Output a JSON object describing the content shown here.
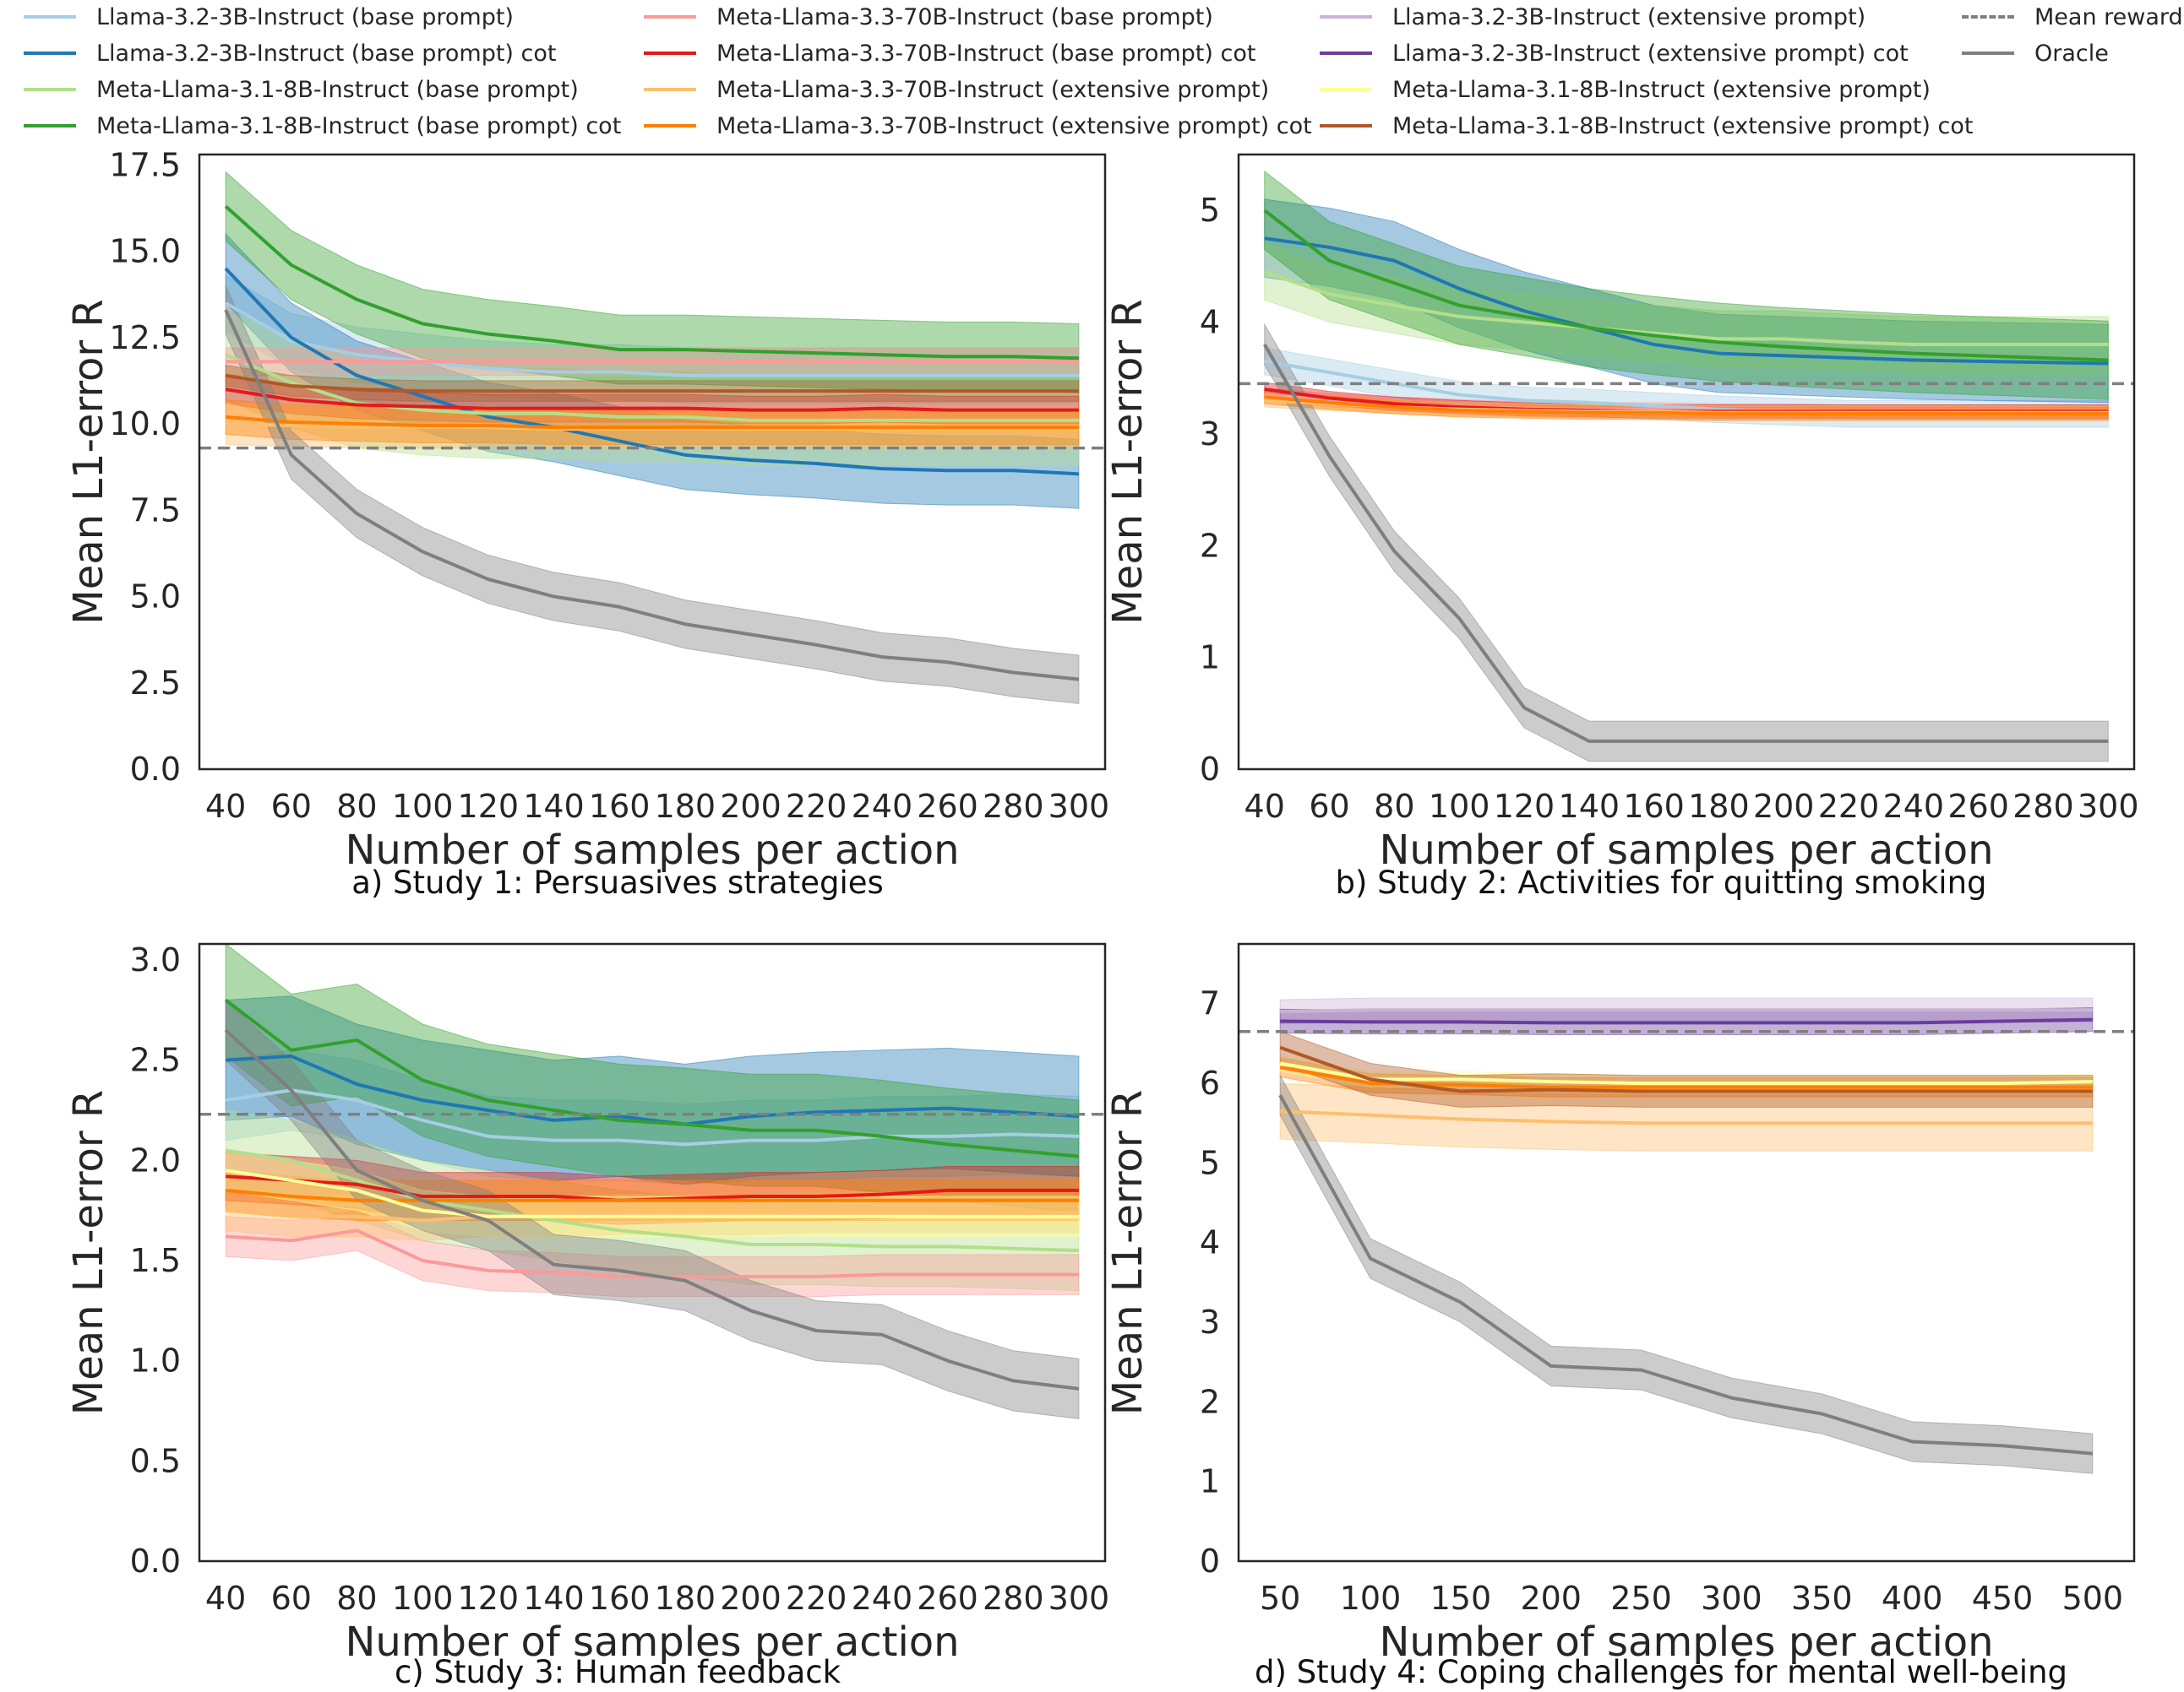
{
  "legend": {
    "items": [
      {
        "label": "Llama-3.2-3B-Instruct (base prompt)",
        "color": "#a6cee3",
        "style": "solid"
      },
      {
        "label": "Llama-3.2-3B-Instruct (base prompt) cot",
        "color": "#1f78b4",
        "style": "solid"
      },
      {
        "label": "Meta-Llama-3.1-8B-Instruct (base prompt)",
        "color": "#b2df8a",
        "style": "solid"
      },
      {
        "label": "Meta-Llama-3.1-8B-Instruct (base prompt) cot",
        "color": "#33a02c",
        "style": "solid"
      },
      {
        "label": "Meta-Llama-3.3-70B-Instruct (base prompt)",
        "color": "#fb9a99",
        "style": "solid"
      },
      {
        "label": "Meta-Llama-3.3-70B-Instruct (base prompt) cot",
        "color": "#e31a1c",
        "style": "solid"
      },
      {
        "label": "Meta-Llama-3.3-70B-Instruct (extensive prompt)",
        "color": "#fdbf6f",
        "style": "solid"
      },
      {
        "label": "Meta-Llama-3.3-70B-Instruct (extensive prompt) cot",
        "color": "#ff7f00",
        "style": "solid"
      },
      {
        "label": "Llama-3.2-3B-Instruct (extensive prompt)",
        "color": "#cab2d6",
        "style": "solid"
      },
      {
        "label": "Llama-3.2-3B-Instruct (extensive prompt) cot",
        "color": "#6a3d9a",
        "style": "solid"
      },
      {
        "label": "Meta-Llama-3.1-8B-Instruct (extensive prompt)",
        "color": "#ffff99",
        "style": "solid"
      },
      {
        "label": "Meta-Llama-3.1-8B-Instruct (extensive prompt) cot",
        "color": "#b15928",
        "style": "solid"
      },
      {
        "label": "Mean reward",
        "color": "#7f7f7f",
        "style": "dashed"
      },
      {
        "label": "Oracle",
        "color": "#7f7f7f",
        "style": "solid"
      }
    ]
  },
  "chart_data": [
    {
      "type": "line",
      "caption": "a) Study 1: Persuasives strategies",
      "xlabel": "Number of samples per action",
      "ylabel": "Mean L1-error R",
      "x": [
        40,
        60,
        80,
        100,
        120,
        140,
        160,
        180,
        200,
        220,
        240,
        260,
        280,
        300
      ],
      "xticks": [
        40,
        60,
        80,
        100,
        120,
        140,
        160,
        180,
        200,
        220,
        240,
        260,
        280,
        300
      ],
      "xlim": [
        32,
        308
      ],
      "ylim": [
        0,
        17.8
      ],
      "yticks": [
        0.0,
        2.5,
        5.0,
        7.5,
        10.0,
        12.5,
        15.0,
        17.5
      ],
      "ytick_decimals": 1,
      "mean_reward": 9.3,
      "series": [
        {
          "name": "Llama-3.2-3B-Instruct (base prompt)",
          "color": "#a6cee3",
          "values": [
            13.5,
            12.4,
            12.0,
            11.8,
            11.6,
            11.5,
            11.5,
            11.4,
            11.4,
            11.4,
            11.4,
            11.4,
            11.4,
            11.4
          ],
          "band": 0.8
        },
        {
          "name": "Llama-3.2-3B-Instruct (base prompt) cot",
          "color": "#1f78b4",
          "values": [
            14.5,
            12.5,
            11.4,
            10.8,
            10.2,
            9.9,
            9.5,
            9.1,
            8.95,
            8.85,
            8.7,
            8.65,
            8.65,
            8.55
          ],
          "band": 1.0
        },
        {
          "name": "Meta-Llama-3.1-8B-Instruct (base prompt)",
          "color": "#b2df8a",
          "values": [
            12.0,
            11.2,
            10.6,
            10.4,
            10.3,
            10.3,
            10.2,
            10.2,
            10.1,
            10.1,
            10.1,
            10.1,
            10.1,
            10.1
          ],
          "band": 1.3
        },
        {
          "name": "Meta-Llama-3.1-8B-Instruct (base prompt) cot",
          "color": "#33a02c",
          "values": [
            16.3,
            14.6,
            13.6,
            12.9,
            12.6,
            12.4,
            12.15,
            12.15,
            12.1,
            12.05,
            12.0,
            11.95,
            11.95,
            11.9
          ],
          "band": 1.0
        },
        {
          "name": "Meta-Llama-3.3-70B-Instruct (base prompt)",
          "color": "#fb9a99",
          "values": [
            11.8,
            11.8,
            11.8,
            11.8,
            11.8,
            11.8,
            11.8,
            11.8,
            11.8,
            11.8,
            11.8,
            11.8,
            11.8,
            11.8
          ],
          "band": 0.4
        },
        {
          "name": "Meta-Llama-3.3-70B-Instruct (base prompt) cot",
          "color": "#e31a1c",
          "values": [
            11.0,
            10.7,
            10.55,
            10.5,
            10.45,
            10.45,
            10.45,
            10.45,
            10.4,
            10.4,
            10.45,
            10.4,
            10.4,
            10.4
          ],
          "band": 0.4
        },
        {
          "name": "Meta-Llama-3.3-70B-Instruct (extensive prompt)",
          "color": "#fdbf6f",
          "values": [
            10.0,
            9.95,
            9.9,
            9.9,
            9.9,
            9.85,
            9.85,
            9.85,
            9.85,
            9.85,
            9.85,
            9.85,
            9.85,
            9.85
          ],
          "band": 0.6
        },
        {
          "name": "Meta-Llama-3.3-70B-Instruct (extensive prompt) cot",
          "color": "#ff7f00",
          "values": [
            10.2,
            10.05,
            10.0,
            9.95,
            9.95,
            9.9,
            9.9,
            9.9,
            9.9,
            9.9,
            9.9,
            9.9,
            9.9,
            9.9
          ],
          "band": 0.5
        },
        {
          "name": "Meta-Llama-3.1-8B-Instruct (extensive prompt) cot",
          "color": "#b15928",
          "values": [
            11.4,
            11.1,
            11.0,
            10.95,
            10.95,
            10.95,
            10.95,
            10.95,
            10.95,
            10.95,
            10.95,
            10.95,
            10.95,
            10.95
          ],
          "band": 0.3
        },
        {
          "name": "Oracle",
          "color": "#7f7f7f",
          "values": [
            13.3,
            9.1,
            7.4,
            6.3,
            5.5,
            5.0,
            4.7,
            4.2,
            3.9,
            3.6,
            3.25,
            3.1,
            2.8,
            2.6
          ],
          "band": 0.7
        }
      ]
    },
    {
      "type": "line",
      "caption": "b) Study 2: Activities for quitting smoking",
      "xlabel": "Number of samples per action",
      "ylabel": "Mean L1-error R",
      "x": [
        40,
        60,
        80,
        100,
        120,
        140,
        160,
        180,
        200,
        220,
        240,
        260,
        280,
        300
      ],
      "xticks": [
        40,
        60,
        80,
        100,
        120,
        140,
        160,
        180,
        200,
        220,
        240,
        260,
        280,
        300
      ],
      "xlim": [
        32,
        308
      ],
      "ylim": [
        0,
        5.5
      ],
      "yticks": [
        0,
        1,
        2,
        3,
        4,
        5
      ],
      "ytick_decimals": 0,
      "mean_reward": 3.45,
      "series": [
        {
          "name": "Llama-3.2-3B-Instruct (base prompt)",
          "color": "#a6cee3",
          "values": [
            3.65,
            3.55,
            3.45,
            3.35,
            3.3,
            3.28,
            3.25,
            3.22,
            3.2,
            3.18,
            3.18,
            3.18,
            3.18,
            3.18
          ],
          "band": 0.12
        },
        {
          "name": "Llama-3.2-3B-Instruct (base prompt) cot",
          "color": "#1f78b4",
          "values": [
            4.75,
            4.67,
            4.55,
            4.3,
            4.1,
            3.95,
            3.8,
            3.72,
            3.7,
            3.68,
            3.66,
            3.65,
            3.64,
            3.63
          ],
          "band": 0.35
        },
        {
          "name": "Meta-Llama-3.1-8B-Instruct (base prompt)",
          "color": "#b2df8a",
          "values": [
            4.45,
            4.25,
            4.15,
            4.05,
            4.0,
            3.95,
            3.9,
            3.85,
            3.85,
            3.82,
            3.8,
            3.8,
            3.8,
            3.8
          ],
          "band": 0.25
        },
        {
          "name": "Meta-Llama-3.1-8B-Instruct (base prompt) cot",
          "color": "#33a02c",
          "values": [
            5.0,
            4.55,
            4.35,
            4.15,
            4.05,
            3.95,
            3.88,
            3.82,
            3.78,
            3.75,
            3.72,
            3.7,
            3.68,
            3.66
          ],
          "band": 0.35
        },
        {
          "name": "Meta-Llama-3.3-70B-Instruct (base prompt)",
          "color": "#fb9a99",
          "values": [
            3.35,
            3.3,
            3.27,
            3.25,
            3.23,
            3.22,
            3.22,
            3.21,
            3.21,
            3.2,
            3.2,
            3.2,
            3.2,
            3.2
          ],
          "band": 0.06
        },
        {
          "name": "Meta-Llama-3.3-70B-Instruct (base prompt) cot",
          "color": "#e31a1c",
          "values": [
            3.4,
            3.32,
            3.27,
            3.24,
            3.22,
            3.21,
            3.2,
            3.2,
            3.2,
            3.2,
            3.2,
            3.2,
            3.2,
            3.2
          ],
          "band": 0.06
        },
        {
          "name": "Meta-Llama-3.3-70B-Instruct (extensive prompt)",
          "color": "#fdbf6f",
          "values": [
            3.3,
            3.27,
            3.24,
            3.22,
            3.21,
            3.2,
            3.2,
            3.19,
            3.19,
            3.19,
            3.19,
            3.19,
            3.19,
            3.19
          ],
          "band": 0.06
        },
        {
          "name": "Meta-Llama-3.3-70B-Instruct (extensive prompt) cot",
          "color": "#ff7f00",
          "values": [
            3.33,
            3.28,
            3.24,
            3.21,
            3.2,
            3.19,
            3.19,
            3.18,
            3.18,
            3.18,
            3.18,
            3.18,
            3.18,
            3.18
          ],
          "band": 0.06
        },
        {
          "name": "Oracle",
          "color": "#7f7f7f",
          "values": [
            3.8,
            2.8,
            1.95,
            1.35,
            0.55,
            0.25,
            0.25,
            0.25,
            0.25,
            0.25,
            0.25,
            0.25,
            0.25,
            0.25
          ],
          "band": 0.18
        }
      ]
    },
    {
      "type": "line",
      "caption": "c) Study 3: Human feedback",
      "xlabel": "Number of samples per action",
      "ylabel": "Mean L1-error R",
      "x": [
        40,
        60,
        80,
        100,
        120,
        140,
        160,
        180,
        200,
        220,
        240,
        260,
        280,
        300
      ],
      "xticks": [
        40,
        60,
        80,
        100,
        120,
        140,
        160,
        180,
        200,
        220,
        240,
        260,
        280,
        300
      ],
      "xlim": [
        32,
        308
      ],
      "ylim": [
        0,
        3.08
      ],
      "yticks": [
        0.0,
        0.5,
        1.0,
        1.5,
        2.0,
        2.5,
        3.0
      ],
      "ytick_decimals": 1,
      "mean_reward": 2.23,
      "series": [
        {
          "name": "Llama-3.2-3B-Instruct (base prompt)",
          "color": "#a6cee3",
          "values": [
            2.3,
            2.35,
            2.3,
            2.2,
            2.12,
            2.1,
            2.1,
            2.08,
            2.1,
            2.1,
            2.12,
            2.12,
            2.13,
            2.12
          ],
          "band": 0.2
        },
        {
          "name": "Llama-3.2-3B-Instruct (base prompt) cot",
          "color": "#1f78b4",
          "values": [
            2.5,
            2.52,
            2.38,
            2.3,
            2.25,
            2.2,
            2.22,
            2.18,
            2.22,
            2.24,
            2.25,
            2.26,
            2.24,
            2.22
          ],
          "band": 0.3
        },
        {
          "name": "Meta-Llama-3.1-8B-Instruct (base prompt)",
          "color": "#b2df8a",
          "values": [
            2.05,
            2.0,
            1.9,
            1.8,
            1.75,
            1.7,
            1.65,
            1.62,
            1.58,
            1.58,
            1.57,
            1.57,
            1.56,
            1.55
          ],
          "band": 0.2
        },
        {
          "name": "Meta-Llama-3.1-8B-Instruct (base prompt) cot",
          "color": "#33a02c",
          "values": [
            2.8,
            2.55,
            2.6,
            2.4,
            2.3,
            2.25,
            2.2,
            2.18,
            2.15,
            2.15,
            2.12,
            2.08,
            2.05,
            2.02
          ],
          "band": 0.28
        },
        {
          "name": "Meta-Llama-3.3-70B-Instruct (base prompt)",
          "color": "#fb9a99",
          "values": [
            1.62,
            1.6,
            1.65,
            1.5,
            1.45,
            1.44,
            1.42,
            1.42,
            1.42,
            1.42,
            1.43,
            1.43,
            1.43,
            1.43
          ],
          "band": 0.1
        },
        {
          "name": "Meta-Llama-3.3-70B-Instruct (base prompt) cot",
          "color": "#e31a1c",
          "values": [
            1.92,
            1.9,
            1.88,
            1.82,
            1.82,
            1.82,
            1.8,
            1.81,
            1.82,
            1.82,
            1.83,
            1.85,
            1.85,
            1.85
          ],
          "band": 0.12
        },
        {
          "name": "Meta-Llama-3.3-70B-Instruct (extensive prompt)",
          "color": "#fdbf6f",
          "values": [
            1.75,
            1.72,
            1.72,
            1.7,
            1.72,
            1.72,
            1.73,
            1.73,
            1.73,
            1.74,
            1.74,
            1.74,
            1.74,
            1.74
          ],
          "band": 0.1
        },
        {
          "name": "Meta-Llama-3.3-70B-Instruct (extensive prompt) cot",
          "color": "#ff7f00",
          "values": [
            1.85,
            1.82,
            1.8,
            1.8,
            1.8,
            1.8,
            1.8,
            1.8,
            1.8,
            1.8,
            1.8,
            1.8,
            1.8,
            1.8
          ],
          "band": 0.1
        },
        {
          "name": "Meta-Llama-3.1-8B-Instruct (extensive prompt)",
          "color": "#ffff99",
          "values": [
            1.95,
            1.9,
            1.85,
            1.75,
            1.72,
            1.72,
            1.72,
            1.72,
            1.72,
            1.72,
            1.72,
            1.72,
            1.72,
            1.72
          ],
          "band": 0.1
        },
        {
          "name": "Oracle",
          "color": "#7f7f7f",
          "values": [
            2.65,
            2.35,
            1.95,
            1.8,
            1.7,
            1.48,
            1.45,
            1.4,
            1.25,
            1.15,
            1.13,
            1.0,
            0.9,
            0.86
          ],
          "band": 0.15
        }
      ]
    },
    {
      "type": "line",
      "caption": "d) Study 4: Coping challenges for mental well-being",
      "xlabel": "Number of samples per action",
      "ylabel": "Mean L1-error R",
      "x": [
        50,
        100,
        150,
        200,
        250,
        300,
        350,
        400,
        450,
        500
      ],
      "xticks": [
        50,
        100,
        150,
        200,
        250,
        300,
        350,
        400,
        450,
        500
      ],
      "xlim": [
        27,
        523
      ],
      "ylim": [
        0,
        7.75
      ],
      "yticks": [
        0,
        1,
        2,
        3,
        4,
        5,
        6,
        7
      ],
      "ytick_decimals": 0,
      "mean_reward": 6.65,
      "series": [
        {
          "name": "Llama-3.2-3B-Instruct (extensive prompt)",
          "color": "#cab2d6",
          "values": [
            6.9,
            6.92,
            6.92,
            6.92,
            6.92,
            6.92,
            6.92,
            6.92,
            6.92,
            6.92
          ],
          "band": 0.15
        },
        {
          "name": "Llama-3.2-3B-Instruct (extensive prompt) cot",
          "color": "#6a3d9a",
          "values": [
            6.78,
            6.77,
            6.77,
            6.76,
            6.76,
            6.76,
            6.76,
            6.76,
            6.78,
            6.8
          ],
          "band": 0.15
        },
        {
          "name": "Meta-Llama-3.3-70B-Instruct (extensive prompt)",
          "color": "#fdbf6f",
          "values": [
            5.65,
            5.6,
            5.55,
            5.52,
            5.5,
            5.5,
            5.5,
            5.5,
            5.5,
            5.5
          ],
          "band": 0.35
        },
        {
          "name": "Meta-Llama-3.3-70B-Instruct (extensive prompt) cot",
          "color": "#ff7f00",
          "values": [
            6.2,
            6.0,
            5.98,
            5.95,
            5.95,
            5.95,
            5.95,
            5.95,
            5.95,
            5.95
          ],
          "band": 0.12
        },
        {
          "name": "Meta-Llama-3.1-8B-Instruct (extensive prompt)",
          "color": "#ffff99",
          "values": [
            6.25,
            6.05,
            6.05,
            6.02,
            6.0,
            6.0,
            6.0,
            6.0,
            6.0,
            6.02
          ],
          "band": 0.1
        },
        {
          "name": "Meta-Llama-3.1-8B-Instruct (extensive prompt) cot",
          "color": "#b15928",
          "values": [
            6.45,
            6.05,
            5.9,
            5.92,
            5.9,
            5.9,
            5.9,
            5.9,
            5.9,
            5.9
          ],
          "band": 0.2
        },
        {
          "name": "Oracle",
          "color": "#7f7f7f",
          "values": [
            5.85,
            3.8,
            3.25,
            2.45,
            2.4,
            2.05,
            1.85,
            1.5,
            1.45,
            1.35
          ],
          "band": 0.25
        }
      ]
    }
  ]
}
